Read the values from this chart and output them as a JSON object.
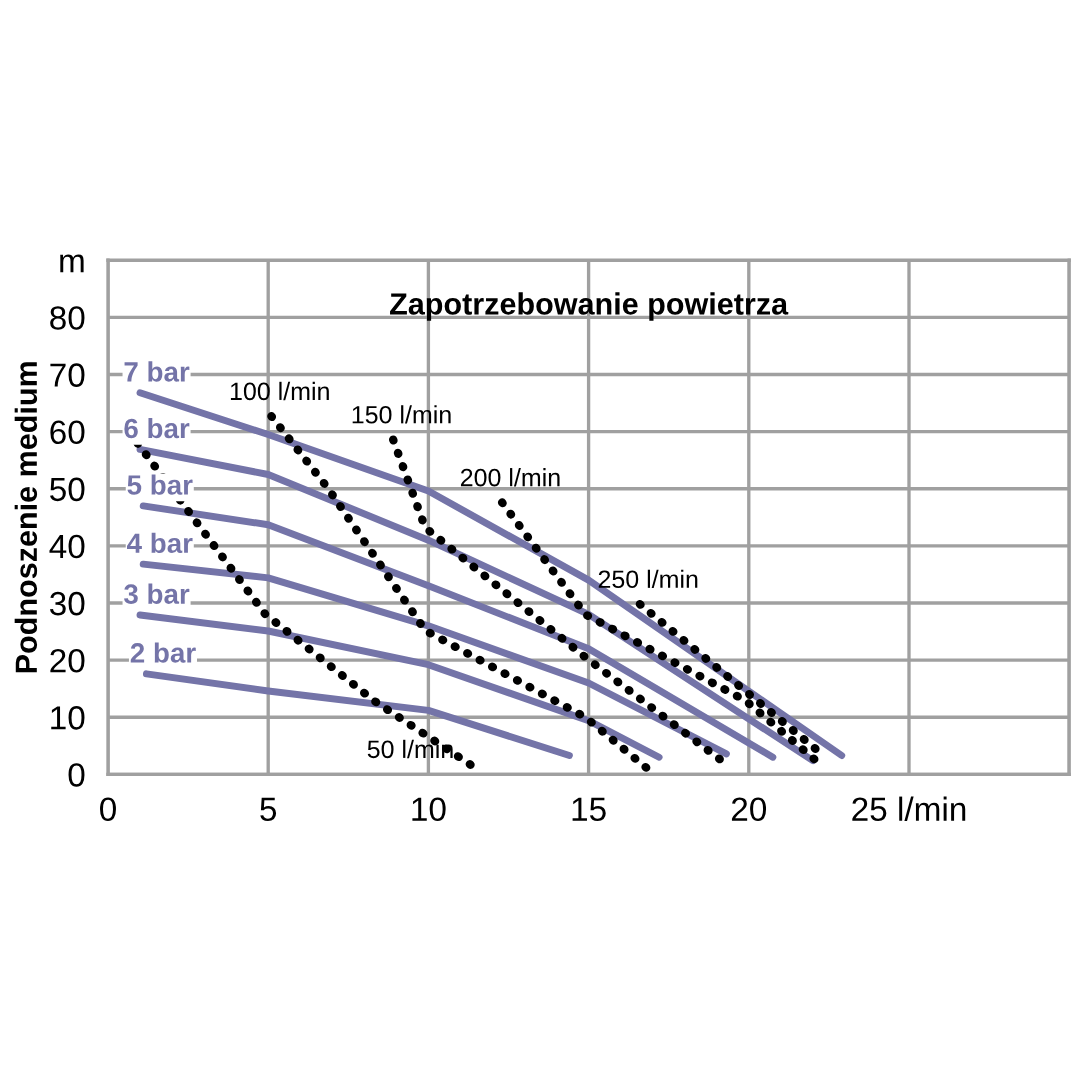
{
  "chart_data": {
    "type": "line",
    "title": "Zapotrzebowanie powietrza",
    "ylabel": "Podnoszenie medium",
    "xlim": [
      0,
      30
    ],
    "ylim": [
      0,
      90
    ],
    "xticks": [
      0,
      5,
      10,
      15,
      20,
      {
        "value": 25,
        "label": "25 l/min"
      },
      {
        "value": 30,
        "label": null
      }
    ],
    "yticks": [
      0,
      10,
      20,
      30,
      40,
      50,
      60,
      70,
      80,
      {
        "value": 90,
        "label": "m"
      }
    ],
    "grid": true,
    "legend": false,
    "series": [
      {
        "name": "7 bar",
        "color": "#7474a8",
        "line_style": "solid",
        "x": [
          1.0,
          5,
          10,
          15,
          22.9
        ],
        "values": [
          66.8,
          59.5,
          49.6,
          34,
          3.3
        ]
      },
      {
        "name": "6 bar",
        "color": "#7474a8",
        "line_style": "solid",
        "x": [
          1.0,
          5,
          10,
          15,
          22.0
        ],
        "values": [
          56.9,
          52.5,
          41,
          28,
          2.4
        ]
      },
      {
        "name": "5 bar",
        "color": "#7474a8",
        "line_style": "solid",
        "x": [
          1.1,
          5,
          10,
          15,
          20.75
        ],
        "values": [
          47,
          43.7,
          33,
          22,
          3
        ]
      },
      {
        "name": "4 bar",
        "color": "#7474a8",
        "line_style": "solid",
        "x": [
          1.1,
          5,
          10,
          15,
          19.3
        ],
        "values": [
          36.8,
          34.4,
          26,
          16,
          3.6
        ]
      },
      {
        "name": "3 bar",
        "color": "#7474a8",
        "line_style": "solid",
        "x": [
          1.0,
          5,
          10,
          15,
          17.2
        ],
        "values": [
          27.9,
          25.1,
          19.2,
          9.4,
          3
        ]
      },
      {
        "name": "2 bar",
        "color": "#7474a8",
        "line_style": "solid",
        "x": [
          1.2,
          5,
          10,
          14.4
        ],
        "values": [
          17.6,
          14.6,
          11.2,
          3.3
        ]
      },
      {
        "color": "#000000",
        "line_style": "dotted",
        "x": [
          0.92,
          4.9,
          8.3,
          11.5
        ],
        "values": [
          58,
          28.1,
          12.9,
          1.0
        ]
      },
      {
        "color": "#000000",
        "line_style": "dotted",
        "x": [
          5.1,
          6.85,
          9.9,
          14.9,
          16.9
        ],
        "values": [
          62.7,
          50.2,
          25.2,
          10,
          0.7
        ]
      },
      {
        "color": "#000000",
        "line_style": "dotted",
        "x": [
          8.9,
          9.9,
          14.9,
          19.2
        ],
        "values": [
          58.6,
          43.2,
          20.5,
          2.2
        ]
      },
      {
        "color": "#000000",
        "line_style": "dotted",
        "x": [
          12.3,
          14.9,
          19.9,
          22.1
        ],
        "values": [
          47.6,
          28,
          12.9,
          2.4
        ]
      },
      {
        "color": "#000000",
        "line_style": "dotted",
        "x": [
          16.6,
          22.4
        ],
        "values": [
          29.8,
          3.0
        ]
      }
    ],
    "annotations": [
      {
        "text": "50 l/min",
        "x": 11.5,
        "y": 1.0
      },
      {
        "text": "100 l/min",
        "x": 5.1,
        "y": 62.7
      },
      {
        "text": "150 l/min",
        "x": 8.9,
        "y": 58.6
      },
      {
        "text": "200 l/min",
        "x": 12.3,
        "y": 47.6
      },
      {
        "text": "250 l/min",
        "x": 16.6,
        "y": 29.8
      }
    ]
  }
}
